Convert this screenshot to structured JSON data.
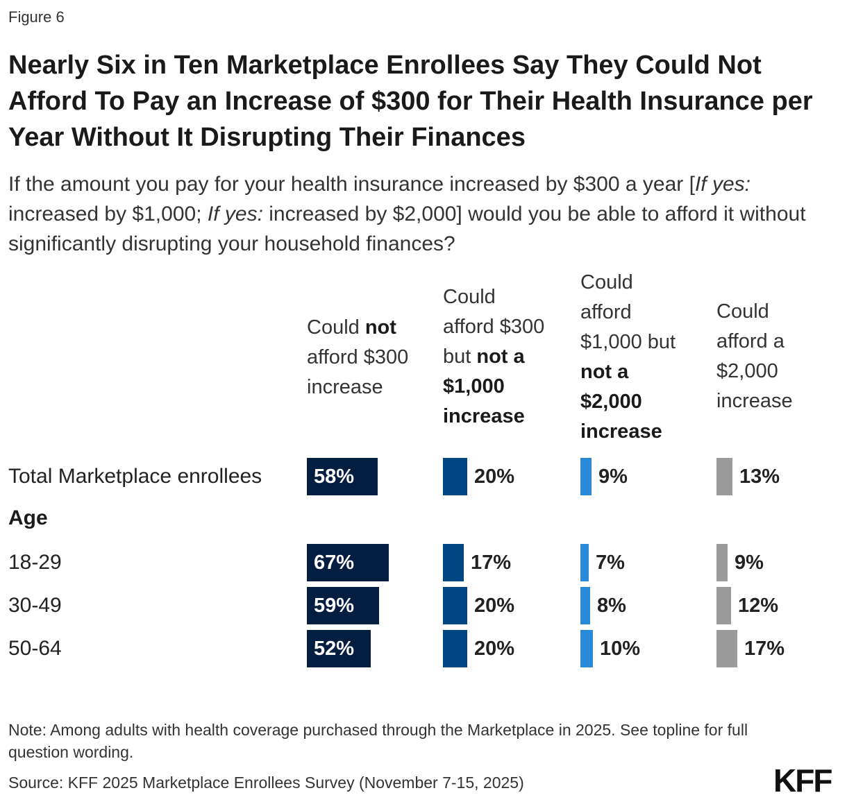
{
  "figure_label": "Figure 6",
  "title": "Nearly Six in Ten Marketplace Enrollees Say They Could Not Afford To Pay an Increase of $300 for Their Health Insurance per Year Without It Disrupting Their Finances",
  "subtitle": {
    "part1": "If the amount you pay for your health insurance increased by $300 a year [",
    "italic1": "If yes:",
    "part2": " increased by $1,000; ",
    "italic2": "If yes:",
    "part3": " increased by $2,000] would you be able to afford it without significantly disrupting your household finances?"
  },
  "columns": [
    {
      "pre1": "Could ",
      "bold": "not",
      "post": " afford $300 increase"
    },
    {
      "pre1": "Could afford $300 but ",
      "bold": "not a $1,000 increase",
      "post": ""
    },
    {
      "pre1": "Could afford $1,000 but ",
      "bold": "not a $2,000 increase",
      "post": ""
    },
    {
      "pre1": "Could afford a $2,000 increase",
      "bold": "",
      "post": ""
    }
  ],
  "rows": [
    {
      "label": "Total Marketplace enrollees",
      "type": "data",
      "values": [
        "58%",
        "20%",
        "9%",
        "13%"
      ]
    },
    {
      "label": "Age",
      "type": "group"
    },
    {
      "label": "18-29",
      "type": "data",
      "values": [
        "67%",
        "17%",
        "7%",
        "9%"
      ]
    },
    {
      "label": "30-49",
      "type": "data",
      "values": [
        "59%",
        "20%",
        "8%",
        "12%"
      ]
    },
    {
      "label": "50-64",
      "type": "data",
      "values": [
        "52%",
        "20%",
        "10%",
        "17%"
      ]
    }
  ],
  "colors": [
    "#041e42",
    "#004584",
    "#2b8ad8",
    "#9a9a9a"
  ],
  "note": "Note: Among adults with health coverage purchased through the Marketplace in 2025. See topline for full question wording.",
  "source": "Source: KFF 2025 Marketplace Enrollees Survey (November 7-15, 2025)",
  "logo": "KFF",
  "chart_data": {
    "type": "bar",
    "title": "Nearly Six in Ten Marketplace Enrollees Say They Could Not Afford To Pay an Increase of $300 for Their Health Insurance per Year Without It Disrupting Their Finances",
    "categories": [
      "Total Marketplace enrollees",
      "18-29",
      "30-49",
      "50-64"
    ],
    "series": [
      {
        "name": "Could not afford $300 increase",
        "values": [
          58,
          67,
          59,
          52
        ]
      },
      {
        "name": "Could afford $300 but not a $1,000 increase",
        "values": [
          20,
          17,
          20,
          20
        ]
      },
      {
        "name": "Could afford $1,000 but not a $2,000 increase",
        "values": [
          9,
          7,
          8,
          10
        ]
      },
      {
        "name": "Could afford a $2,000 increase",
        "values": [
          13,
          9,
          12,
          17
        ]
      }
    ],
    "unit": "%",
    "xlabel": "",
    "ylabel": "",
    "grid": false
  }
}
